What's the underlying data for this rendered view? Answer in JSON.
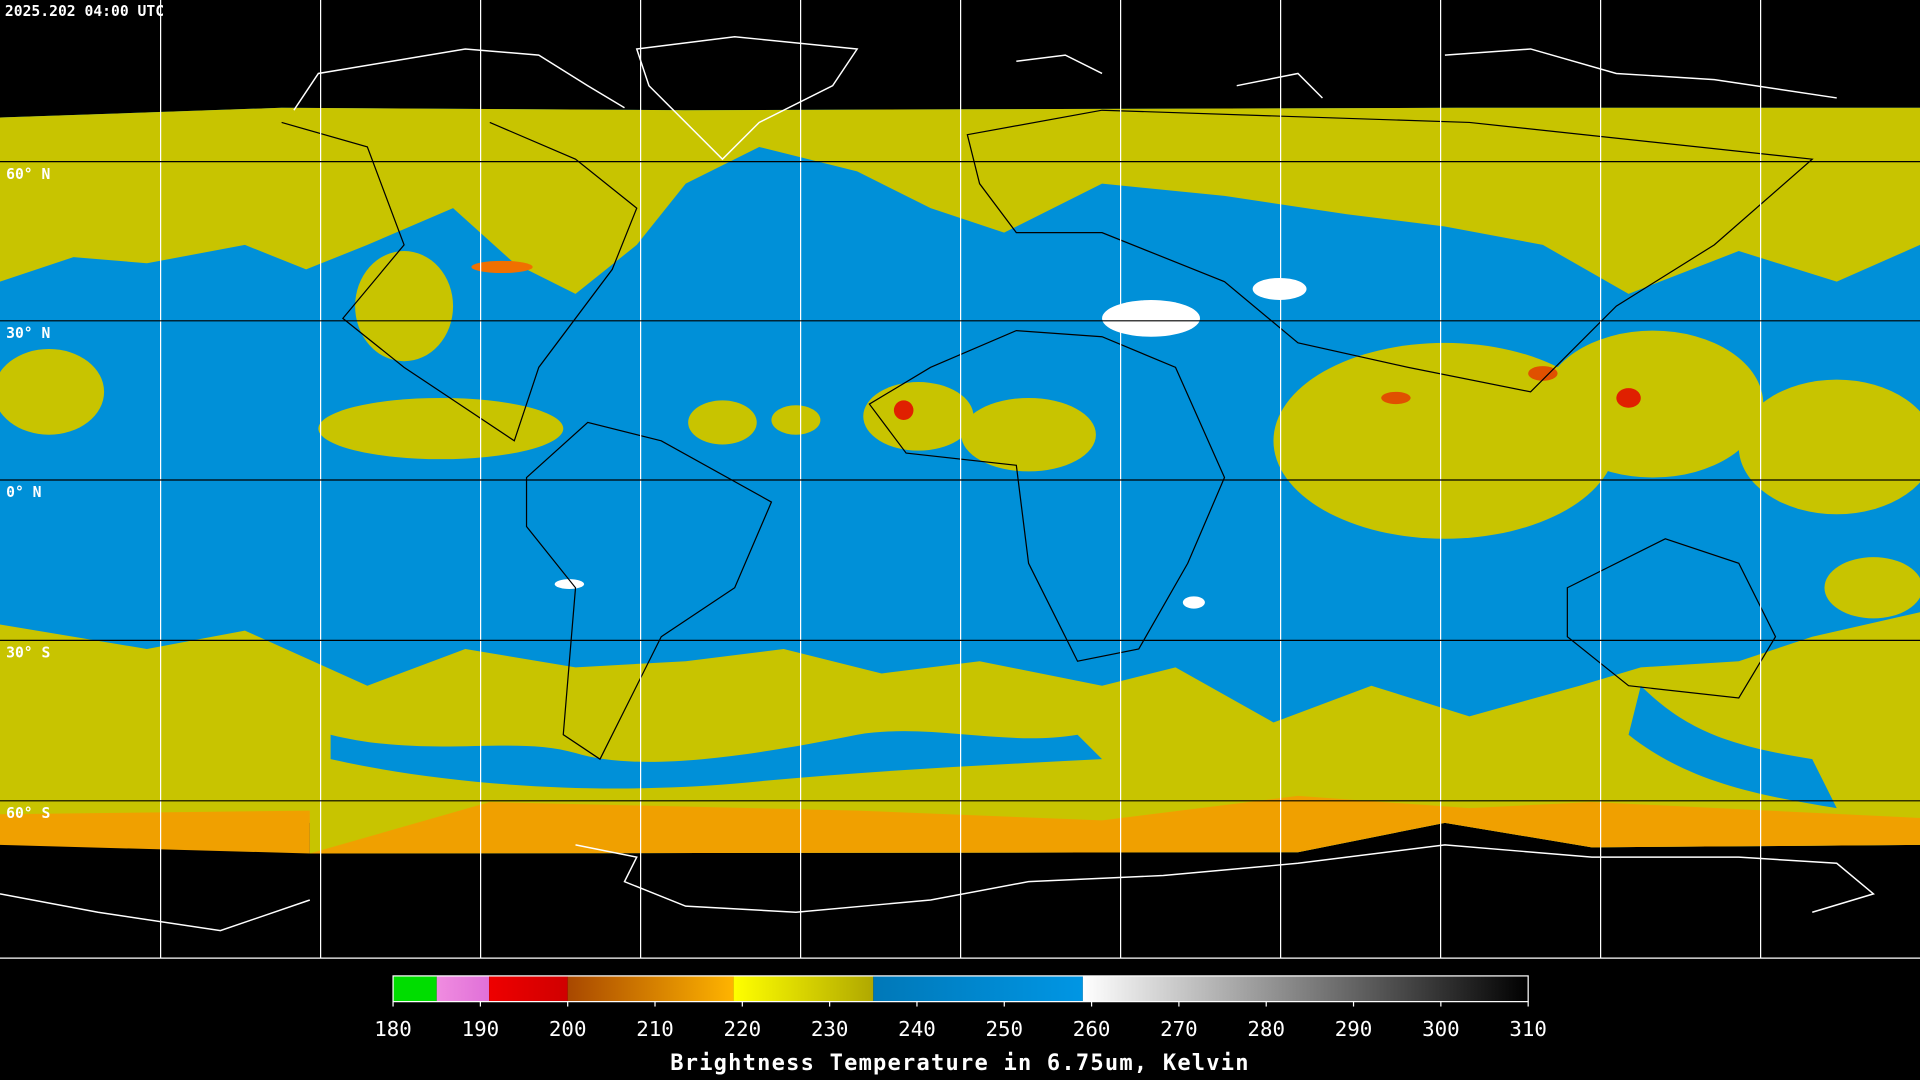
{
  "header": {
    "timestamp": "2025.202 04:00 UTC"
  },
  "map": {
    "latitude_labels": [
      "60° N",
      "30° N",
      "0° N",
      "30° S",
      "60° S"
    ]
  },
  "colorbar": {
    "title": "Brightness Temperature in 6.75um, Kelvin",
    "range": [
      180,
      310
    ],
    "ticks": [
      180,
      190,
      200,
      210,
      220,
      230,
      240,
      250,
      260,
      270,
      280,
      290,
      300,
      310
    ],
    "segments": [
      {
        "from": 180,
        "to": 185,
        "colors": [
          "#00dd00",
          "#00dd00"
        ]
      },
      {
        "from": 185,
        "to": 191,
        "colors": [
          "#f08ce0",
          "#e070d8"
        ]
      },
      {
        "from": 191,
        "to": 200,
        "colors": [
          "#ee0000",
          "#d00000"
        ]
      },
      {
        "from": 200,
        "to": 219,
        "colors": [
          "#a84800",
          "#ffb400"
        ]
      },
      {
        "from": 219,
        "to": 235,
        "colors": [
          "#ffff00",
          "#b0a800"
        ]
      },
      {
        "from": 235,
        "to": 259,
        "colors": [
          "#0078b8",
          "#0096e4"
        ]
      },
      {
        "from": 259,
        "to": 310,
        "colors": [
          "#ffffff",
          "#000000"
        ]
      }
    ]
  }
}
